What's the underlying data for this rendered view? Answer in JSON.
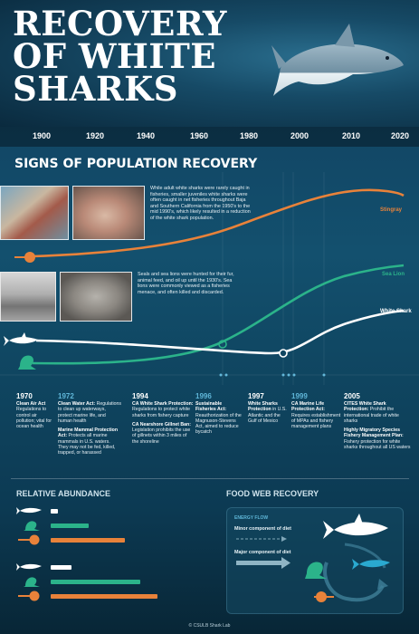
{
  "title": "RECOVERY OF WHITE SHARKS",
  "timeline_years": [
    "1900",
    "1920",
    "1940",
    "1960",
    "1980",
    "2000",
    "2010",
    "2020"
  ],
  "section_title": "SIGNS OF POPULATION RECOVERY",
  "notes": {
    "fisheries": "While adult white sharks were rarely caught in fisheries, smaller juveniles white sharks were often caught in net fisheries throughout Baja and Southern California from the 1950's to the mid 1990's, which likely resulted in a reduction of the white shark population.",
    "pinnipeds": "Seals and sea lions were hunted for their fur, animal feed, and oil up until the 1930's. Sea lions were commonly viewed as a fisheries menace, and often killed and discarded."
  },
  "series_labels": {
    "stingray": "Stingray",
    "sealion": "Sea Lion",
    "shark": "White Shark"
  },
  "colors": {
    "stingray": "#e8823a",
    "sealion": "#2bb38a",
    "shark": "#ffffff",
    "accent_year": "#5fb6d8"
  },
  "events": [
    {
      "year": "1970",
      "title": "Clean Air Act",
      "text": "Regulations to control air pollution; vital for ocean health",
      "accent": false
    },
    {
      "year": "1972",
      "title": "Clean Water Act:",
      "text": "Regulations to clean up waterways, protect marine life, and human health",
      "title2": "Marine Mammal Protection Act:",
      "text2": "Protects all marine mammals in U.S. waters. They may not be fed, killed, trapped, or harassed",
      "accent": true
    },
    {
      "year": "1994",
      "title": "CA White Shark Protection:",
      "text": "Regulations to protect white sharks from fishery capture",
      "title2": "CA Nearshore Gillnet Ban:",
      "text2": "Legislation prohibits the use of gillnets within 3 miles of the shoreline",
      "accent": false
    },
    {
      "year": "1996",
      "title": "Sustainable Fisheries Act:",
      "text": "Reauthorization of the Magnuson-Stevens Act, aimed to reduce bycatch",
      "accent": true
    },
    {
      "year": "1997",
      "title": "White Sharks Protection",
      "text": "in U.S. Atlantic and the Gulf of Mexico",
      "accent": false
    },
    {
      "year": "1999",
      "title": "CA Marine Life Protection Act:",
      "text": "Requires establishment of MPAs and fishery management plans",
      "accent": true
    },
    {
      "year": "2005",
      "title": "CITES White Shark Protection:",
      "text": "Prohibit the international trade of white sharks",
      "title2": "Highly Migratory Species Fishery Management Plan:",
      "text2": "Fishery protection for white sharks throughout all US waters",
      "accent": false
    }
  ],
  "relative_abundance": {
    "title": "RELATIVE ABUNDANCE",
    "groups": [
      {
        "rows": [
          {
            "species": "white-shark",
            "value": 0.04
          },
          {
            "species": "sea-lion",
            "value": 0.22
          },
          {
            "species": "stingray",
            "value": 0.43
          }
        ]
      },
      {
        "rows": [
          {
            "species": "white-shark",
            "value": 0.12
          },
          {
            "species": "sea-lion",
            "value": 0.52
          },
          {
            "species": "stingray",
            "value": 0.62
          }
        ]
      }
    ]
  },
  "food_web": {
    "title": "FOOD WEB RECOVERY",
    "energy_flow": "ENERGY FLOW",
    "minor": "Minor component of diet",
    "major": "Major component of diet"
  },
  "footer": "© CSULB Shark Lab"
}
